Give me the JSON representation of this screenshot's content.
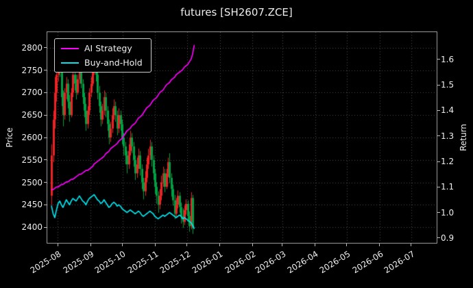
{
  "colors": {
    "background": "#000000",
    "text": "#eeeeee",
    "grid": "#4f4f4f",
    "spine": "#9a9a9a",
    "up": "#ee2222",
    "down": "#00a044",
    "ai": "#ff00ff",
    "bh": "#00e5ee"
  },
  "chart_data": {
    "type": "candlestick+line",
    "title": "futures [SH2607.ZCE]",
    "symbol": "SH2607.ZCE",
    "legend_position": "upper-left",
    "grid": true,
    "x_axis": {
      "tick_labels": [
        "2025-08",
        "2025-09",
        "2025-10",
        "2025-11",
        "2025-12",
        "2026-01",
        "2026-02",
        "2026-03",
        "2026-04",
        "2026-05",
        "2026-06",
        "2026-07"
      ],
      "tick_days": [
        10,
        41,
        71,
        102,
        132,
        163,
        194,
        222,
        253,
        283,
        314,
        344
      ],
      "day_range": [
        0,
        368
      ]
    },
    "price_axis": {
      "label": "Price",
      "ticks": [
        2400,
        2450,
        2500,
        2550,
        2600,
        2650,
        2700,
        2750,
        2800
      ],
      "range": [
        2365,
        2835
      ]
    },
    "return_axis": {
      "label": "Return",
      "ticks": [
        "0.9",
        "1.0",
        "1.1",
        "1.2",
        "1.3",
        "1.4",
        "1.5",
        "1.6"
      ],
      "range": [
        0.881,
        1.707
      ]
    },
    "candles": {
      "start_day": 4,
      "day_spacing": 1.55,
      "ohlc": [
        [
          2470,
          2585,
          2440,
          2560
        ],
        [
          2560,
          2660,
          2545,
          2640
        ],
        [
          2640,
          2735,
          2620,
          2700
        ],
        [
          2700,
          2770,
          2680,
          2740
        ],
        [
          2740,
          2805,
          2725,
          2800
        ],
        [
          2800,
          2810,
          2735,
          2750
        ],
        [
          2750,
          2765,
          2670,
          2690
        ],
        [
          2690,
          2705,
          2625,
          2650
        ],
        [
          2650,
          2710,
          2640,
          2700
        ],
        [
          2700,
          2735,
          2685,
          2720
        ],
        [
          2720,
          2730,
          2665,
          2680
        ],
        [
          2680,
          2695,
          2635,
          2650
        ],
        [
          2650,
          2710,
          2645,
          2700
        ],
        [
          2700,
          2750,
          2690,
          2740
        ],
        [
          2740,
          2755,
          2705,
          2720
        ],
        [
          2720,
          2740,
          2685,
          2700
        ],
        [
          2700,
          2740,
          2695,
          2730
        ],
        [
          2730,
          2770,
          2720,
          2760
        ],
        [
          2760,
          2775,
          2710,
          2720
        ],
        [
          2720,
          2730,
          2675,
          2690
        ],
        [
          2690,
          2700,
          2645,
          2660
        ],
        [
          2660,
          2675,
          2615,
          2630
        ],
        [
          2630,
          2670,
          2620,
          2660
        ],
        [
          2660,
          2710,
          2650,
          2700
        ],
        [
          2700,
          2735,
          2690,
          2720
        ],
        [
          2720,
          2760,
          2715,
          2750
        ],
        [
          2750,
          2785,
          2740,
          2770
        ],
        [
          2770,
          2780,
          2725,
          2740
        ],
        [
          2740,
          2750,
          2685,
          2700
        ],
        [
          2700,
          2715,
          2655,
          2670
        ],
        [
          2670,
          2680,
          2625,
          2640
        ],
        [
          2640,
          2675,
          2630,
          2660
        ],
        [
          2660,
          2705,
          2650,
          2690
        ],
        [
          2690,
          2700,
          2645,
          2660
        ],
        [
          2660,
          2670,
          2615,
          2630
        ],
        [
          2630,
          2640,
          2585,
          2600
        ],
        [
          2600,
          2635,
          2590,
          2620
        ],
        [
          2620,
          2665,
          2610,
          2650
        ],
        [
          2650,
          2685,
          2640,
          2670
        ],
        [
          2670,
          2680,
          2635,
          2650
        ],
        [
          2650,
          2660,
          2605,
          2620
        ],
        [
          2620,
          2665,
          2610,
          2650
        ],
        [
          2650,
          2660,
          2615,
          2630
        ],
        [
          2630,
          2640,
          2585,
          2600
        ],
        [
          2600,
          2610,
          2560,
          2580
        ],
        [
          2580,
          2590,
          2540,
          2560
        ],
        [
          2560,
          2570,
          2520,
          2540
        ],
        [
          2540,
          2585,
          2530,
          2570
        ],
        [
          2570,
          2615,
          2560,
          2600
        ],
        [
          2600,
          2610,
          2565,
          2580
        ],
        [
          2580,
          2590,
          2535,
          2550
        ],
        [
          2550,
          2560,
          2505,
          2520
        ],
        [
          2520,
          2555,
          2510,
          2540
        ],
        [
          2540,
          2575,
          2530,
          2560
        ],
        [
          2560,
          2570,
          2515,
          2530
        ],
        [
          2530,
          2540,
          2485,
          2500
        ],
        [
          2500,
          2510,
          2462,
          2480
        ],
        [
          2480,
          2525,
          2470,
          2510
        ],
        [
          2510,
          2555,
          2500,
          2540
        ],
        [
          2540,
          2575,
          2530,
          2560
        ],
        [
          2560,
          2595,
          2550,
          2580
        ],
        [
          2580,
          2590,
          2535,
          2550
        ],
        [
          2550,
          2560,
          2505,
          2520
        ],
        [
          2520,
          2530,
          2475,
          2490
        ],
        [
          2490,
          2500,
          2452,
          2470
        ],
        [
          2470,
          2480,
          2432,
          2450
        ],
        [
          2450,
          2485,
          2440,
          2470
        ],
        [
          2470,
          2515,
          2460,
          2500
        ],
        [
          2500,
          2535,
          2490,
          2520
        ],
        [
          2520,
          2530,
          2478,
          2490
        ],
        [
          2490,
          2530,
          2485,
          2520
        ],
        [
          2520,
          2555,
          2512,
          2545
        ],
        [
          2545,
          2565,
          2498,
          2510
        ],
        [
          2510,
          2520,
          2468,
          2485
        ],
        [
          2485,
          2495,
          2448,
          2460
        ],
        [
          2460,
          2472,
          2418,
          2430
        ],
        [
          2430,
          2465,
          2422,
          2450
        ],
        [
          2450,
          2482,
          2442,
          2470
        ],
        [
          2470,
          2478,
          2432,
          2445
        ],
        [
          2445,
          2455,
          2408,
          2425
        ],
        [
          2425,
          2442,
          2398,
          2412
        ],
        [
          2412,
          2448,
          2405,
          2438
        ],
        [
          2438,
          2462,
          2428,
          2452
        ],
        [
          2452,
          2460,
          2412,
          2425
        ],
        [
          2425,
          2435,
          2390,
          2402
        ],
        [
          2402,
          2478,
          2395,
          2465
        ],
        [
          2465,
          2472,
          2385,
          2398
        ]
      ]
    },
    "series": [
      {
        "name": "AI Strategy",
        "axis": "return",
        "color_key": "ai",
        "values": [
          1.09,
          1.09,
          1.095,
          1.1,
          1.1,
          1.105,
          1.11,
          1.11,
          1.115,
          1.12,
          1.12,
          1.125,
          1.13,
          1.13,
          1.135,
          1.14,
          1.145,
          1.15,
          1.15,
          1.155,
          1.16,
          1.165,
          1.165,
          1.17,
          1.175,
          1.18,
          1.19,
          1.195,
          1.2,
          1.205,
          1.21,
          1.215,
          1.22,
          1.23,
          1.235,
          1.24,
          1.25,
          1.255,
          1.26,
          1.265,
          1.27,
          1.28,
          1.285,
          1.29,
          1.3,
          1.31,
          1.32,
          1.325,
          1.33,
          1.34,
          1.345,
          1.35,
          1.36,
          1.37,
          1.375,
          1.38,
          1.39,
          1.4,
          1.41,
          1.415,
          1.42,
          1.43,
          1.44,
          1.445,
          1.45,
          1.46,
          1.47,
          1.475,
          1.48,
          1.49,
          1.5,
          1.505,
          1.51,
          1.52,
          1.525,
          1.53,
          1.54,
          1.545,
          1.55,
          1.555,
          1.56,
          1.57,
          1.575,
          1.58,
          1.59,
          1.6,
          1.62,
          1.655
        ]
      },
      {
        "name": "Buy-and-Hold",
        "axis": "return",
        "color_key": "bh",
        "values": [
          1.025,
          0.995,
          0.98,
          1.01,
          1.035,
          1.045,
          1.03,
          1.02,
          1.035,
          1.05,
          1.04,
          1.03,
          1.045,
          1.055,
          1.05,
          1.045,
          1.055,
          1.065,
          1.055,
          1.045,
          1.04,
          1.03,
          1.045,
          1.055,
          1.06,
          1.065,
          1.07,
          1.06,
          1.05,
          1.045,
          1.035,
          1.04,
          1.05,
          1.04,
          1.03,
          1.02,
          1.025,
          1.035,
          1.04,
          1.035,
          1.025,
          1.03,
          1.025,
          1.015,
          1.01,
          1.005,
          1.0,
          1.005,
          1.01,
          1.005,
          1.0,
          0.995,
          1.0,
          1.005,
          1.0,
          0.99,
          0.985,
          0.99,
          0.995,
          1.0,
          1.005,
          1.0,
          0.995,
          0.985,
          0.98,
          0.975,
          0.98,
          0.985,
          0.99,
          0.985,
          0.99,
          0.995,
          1.0,
          0.995,
          0.99,
          0.985,
          0.98,
          0.985,
          0.99,
          0.985,
          0.975,
          0.98,
          0.975,
          0.97,
          0.965,
          0.96,
          0.95,
          0.938
        ]
      }
    ]
  }
}
